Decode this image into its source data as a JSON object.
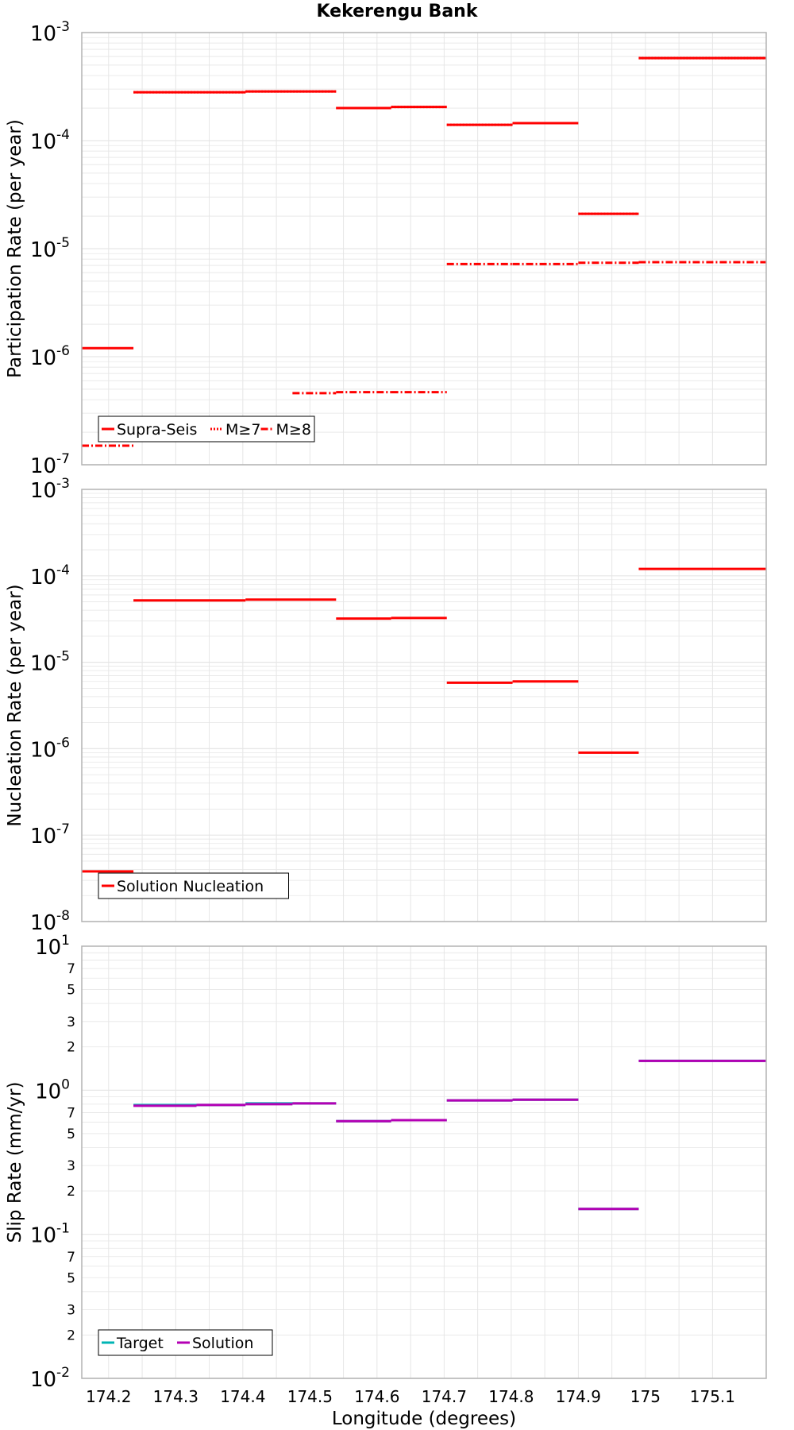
{
  "title": "Kekerengu Bank",
  "xlabel": "Longitude (degrees)",
  "colors": {
    "red": "#ff0000",
    "purple": "#b400b4",
    "teal": "#00b4b4",
    "grid": "#e6e6e6",
    "frame": "#b3b3b3"
  },
  "chart_data": [
    {
      "type": "line",
      "ylabel": "Participation Rate (per year)",
      "yscale": "log",
      "ylim_exp": [
        -7,
        -3
      ],
      "xlim": [
        174.16,
        175.18
      ],
      "xticks": [
        "174.2",
        "174.3",
        "174.4",
        "174.5",
        "174.6",
        "174.7",
        "174.8",
        "174.9",
        "175",
        "175.1"
      ],
      "legend": {
        "position": "bottom-left",
        "entries": [
          "Supra-Seis",
          "M≥7",
          "M≥8"
        ]
      },
      "grid": true,
      "series": [
        {
          "name": "Supra-Seis",
          "style": "solid",
          "segments": [
            [
              174.16,
              174.237,
              1.2e-06
            ],
            [
              174.237,
              174.404,
              0.00028
            ],
            [
              174.404,
              174.539,
              0.000285
            ],
            [
              174.539,
              174.621,
              0.0002
            ],
            [
              174.621,
              174.704,
              0.000205
            ],
            [
              174.704,
              174.802,
              0.00014
            ],
            [
              174.802,
              174.9,
              0.000145
            ],
            [
              174.9,
              174.99,
              2.1e-05
            ],
            [
              174.99,
              175.18,
              0.00058
            ]
          ]
        },
        {
          "name": "M≥7",
          "style": "dotted",
          "segments": [
            [
              174.237,
              174.404,
              0.00028
            ],
            [
              174.404,
              174.539,
              0.000285
            ],
            [
              174.539,
              174.621,
              0.0002
            ],
            [
              174.621,
              174.704,
              0.000205
            ],
            [
              174.704,
              174.802,
              0.00014
            ],
            [
              174.802,
              174.9,
              0.000145
            ],
            [
              174.9,
              174.99,
              2.1e-05
            ],
            [
              174.99,
              175.18,
              0.00058
            ]
          ]
        },
        {
          "name": "M≥8",
          "style": "dashdot",
          "segments": [
            [
              174.16,
              174.237,
              1.5e-07
            ],
            [
              174.474,
              174.539,
              4.6e-07
            ],
            [
              174.539,
              174.621,
              4.7e-07
            ],
            [
              174.621,
              174.704,
              4.7e-07
            ],
            [
              174.704,
              174.802,
              7.2e-06
            ],
            [
              174.802,
              174.9,
              7.2e-06
            ],
            [
              174.9,
              174.99,
              7.4e-06
            ],
            [
              174.99,
              175.18,
              7.5e-06
            ]
          ]
        }
      ]
    },
    {
      "type": "line",
      "ylabel": "Nucleation Rate (per year)",
      "yscale": "log",
      "ylim_exp": [
        -8,
        -3
      ],
      "xlim": [
        174.16,
        175.18
      ],
      "legend": {
        "position": "bottom-left",
        "entries": [
          "Solution Nucleation"
        ]
      },
      "grid": true,
      "series": [
        {
          "name": "Solution Nucleation",
          "style": "solid",
          "segments": [
            [
              174.16,
              174.237,
              3.8e-08
            ],
            [
              174.237,
              174.404,
              5.2e-05
            ],
            [
              174.404,
              174.539,
              5.3e-05
            ],
            [
              174.539,
              174.621,
              3.2e-05
            ],
            [
              174.621,
              174.704,
              3.25e-05
            ],
            [
              174.704,
              174.802,
              5.8e-06
            ],
            [
              174.802,
              174.9,
              6e-06
            ],
            [
              174.9,
              174.99,
              9e-07
            ],
            [
              174.99,
              175.18,
              0.00012
            ]
          ]
        }
      ]
    },
    {
      "type": "line",
      "ylabel": "Slip Rate (mm/yr)",
      "yscale": "log",
      "ylim_exp": [
        -2,
        1
      ],
      "xlim": [
        174.16,
        175.18
      ],
      "minor_tick_labels": [
        "2",
        "3",
        "5",
        "7"
      ],
      "legend": {
        "position": "bottom-left",
        "entries": [
          "Target",
          "Solution"
        ]
      },
      "grid": true,
      "series": [
        {
          "name": "Target",
          "style": "solid",
          "segments": [
            [
              174.237,
              174.404,
              0.79
            ],
            [
              174.404,
              174.539,
              0.81
            ],
            [
              174.539,
              174.621,
              0.61
            ],
            [
              174.621,
              174.704,
              0.62
            ],
            [
              174.704,
              174.802,
              0.85
            ],
            [
              174.802,
              174.9,
              0.86
            ],
            [
              174.9,
              174.99,
              0.15
            ],
            [
              174.99,
              175.18,
              1.6
            ]
          ]
        },
        {
          "name": "Solution",
          "style": "solid",
          "segments": [
            [
              174.237,
              174.331,
              0.78
            ],
            [
              174.331,
              174.404,
              0.79
            ],
            [
              174.404,
              174.474,
              0.8
            ],
            [
              174.474,
              174.539,
              0.81
            ],
            [
              174.539,
              174.621,
              0.61
            ],
            [
              174.621,
              174.704,
              0.62
            ],
            [
              174.704,
              174.802,
              0.85
            ],
            [
              174.802,
              174.9,
              0.86
            ],
            [
              174.9,
              174.99,
              0.15
            ],
            [
              174.99,
              175.18,
              1.6
            ]
          ]
        }
      ]
    }
  ]
}
